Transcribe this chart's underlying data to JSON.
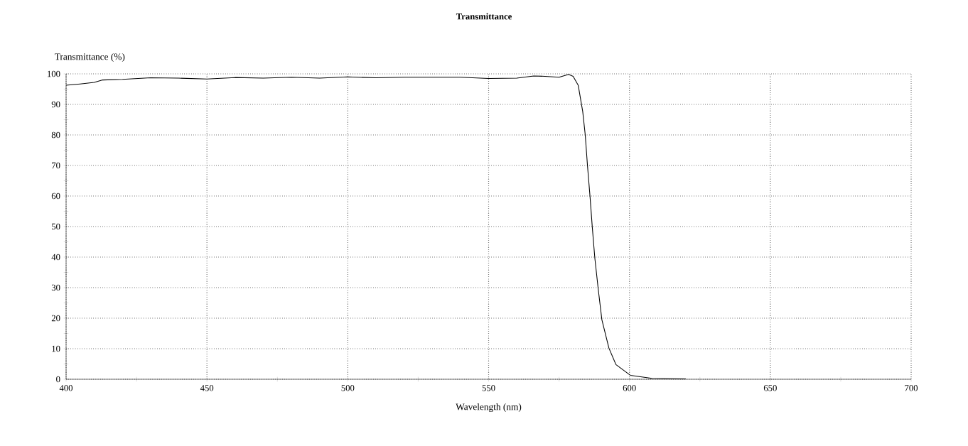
{
  "chart_data": {
    "type": "line",
    "title": "Transmittance",
    "xlabel": "Wavelength (nm)",
    "ylabel": "Transmittance (%)",
    "x": [
      400,
      405,
      410,
      413,
      420,
      430,
      440,
      450,
      460,
      470,
      480,
      490,
      500,
      510,
      520,
      530,
      540,
      550,
      560,
      566,
      570,
      575,
      578.4,
      580,
      581.8,
      583.4,
      584.3,
      585.1,
      586.0,
      586.8,
      587.7,
      588.9,
      590.2,
      592.7,
      595.2,
      600.3,
      608,
      620
    ],
    "series": [
      {
        "color": "#000000",
        "values": [
          96.3,
          96.7,
          97.2,
          98.0,
          98.2,
          98.7,
          98.6,
          98.3,
          98.8,
          98.6,
          98.9,
          98.6,
          99.0,
          98.7,
          98.9,
          98.9,
          98.9,
          98.5,
          98.6,
          99.3,
          99.2,
          98.9,
          99.8,
          99.2,
          96.3,
          87.7,
          80.0,
          69.9,
          59.8,
          49.8,
          39.7,
          29.6,
          19.5,
          10.2,
          4.8,
          1.3,
          0.3,
          0.1
        ]
      }
    ],
    "xlim": [
      400,
      700
    ],
    "ylim": [
      0,
      100
    ],
    "xticks": [
      400,
      {
        "value": 425,
        "label": null
      },
      450,
      {
        "value": 475,
        "label": null
      },
      500,
      {
        "value": 525,
        "label": null
      },
      550,
      {
        "value": 575,
        "label": null
      },
      600,
      {
        "value": 625,
        "label": null
      },
      650,
      {
        "value": 675,
        "label": null
      },
      700
    ],
    "yticks": [
      0,
      {
        "value": 5,
        "label": null
      },
      10,
      {
        "value": 15,
        "label": null
      },
      20,
      {
        "value": 25,
        "label": null
      },
      30,
      {
        "value": 35,
        "label": null
      },
      40,
      {
        "value": 45,
        "label": null
      },
      50,
      {
        "value": 55,
        "label": null
      },
      60,
      {
        "value": 65,
        "label": null
      },
      70,
      {
        "value": 75,
        "label": null
      },
      80,
      {
        "value": 85,
        "label": null
      },
      90,
      {
        "value": 95,
        "label": null
      },
      100
    ],
    "grid": true,
    "marker": "none",
    "line_style": "solid"
  }
}
